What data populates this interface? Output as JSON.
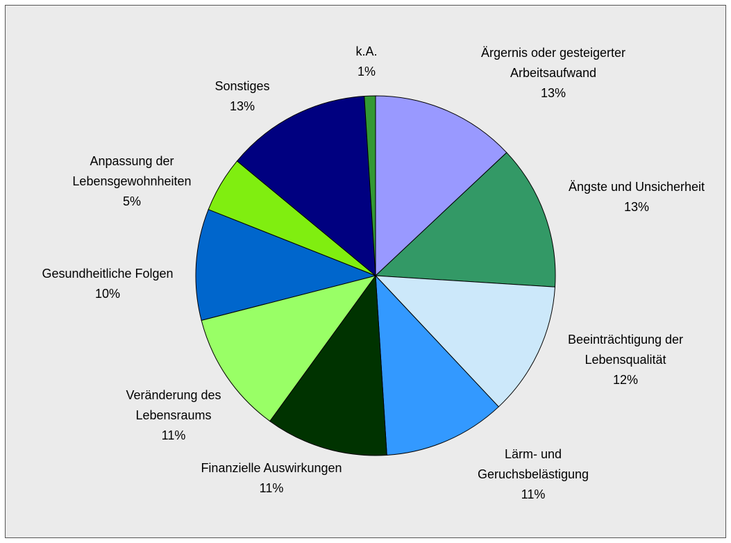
{
  "chart_data": {
    "type": "pie",
    "categories": [
      "Ärgernis oder gesteigerter Arbeitsaufwand",
      "Ängste und Unsicherheit",
      "Beeinträchtigung der Lebensqualität",
      "Lärm- und Geruchsbelästigung",
      "Finanzielle Auswirkungen",
      "Veränderung des Lebensraums",
      "Gesundheitliche Folgen",
      "Anpassung der Lebensgewohnheiten",
      "Sonstiges",
      "k.A."
    ],
    "values": [
      13,
      13,
      12,
      11,
      11,
      11,
      10,
      5,
      13,
      1
    ],
    "value_labels": [
      "13%",
      "13%",
      "12%",
      "11%",
      "11%",
      "11%",
      "10%",
      "5%",
      "13%",
      "1%"
    ],
    "colors": [
      "#9999ff",
      "#339966",
      "#cce8fa",
      "#3399ff",
      "#003300",
      "#99ff66",
      "#0066cc",
      "#80ee10",
      "#000080",
      "#339933"
    ]
  }
}
